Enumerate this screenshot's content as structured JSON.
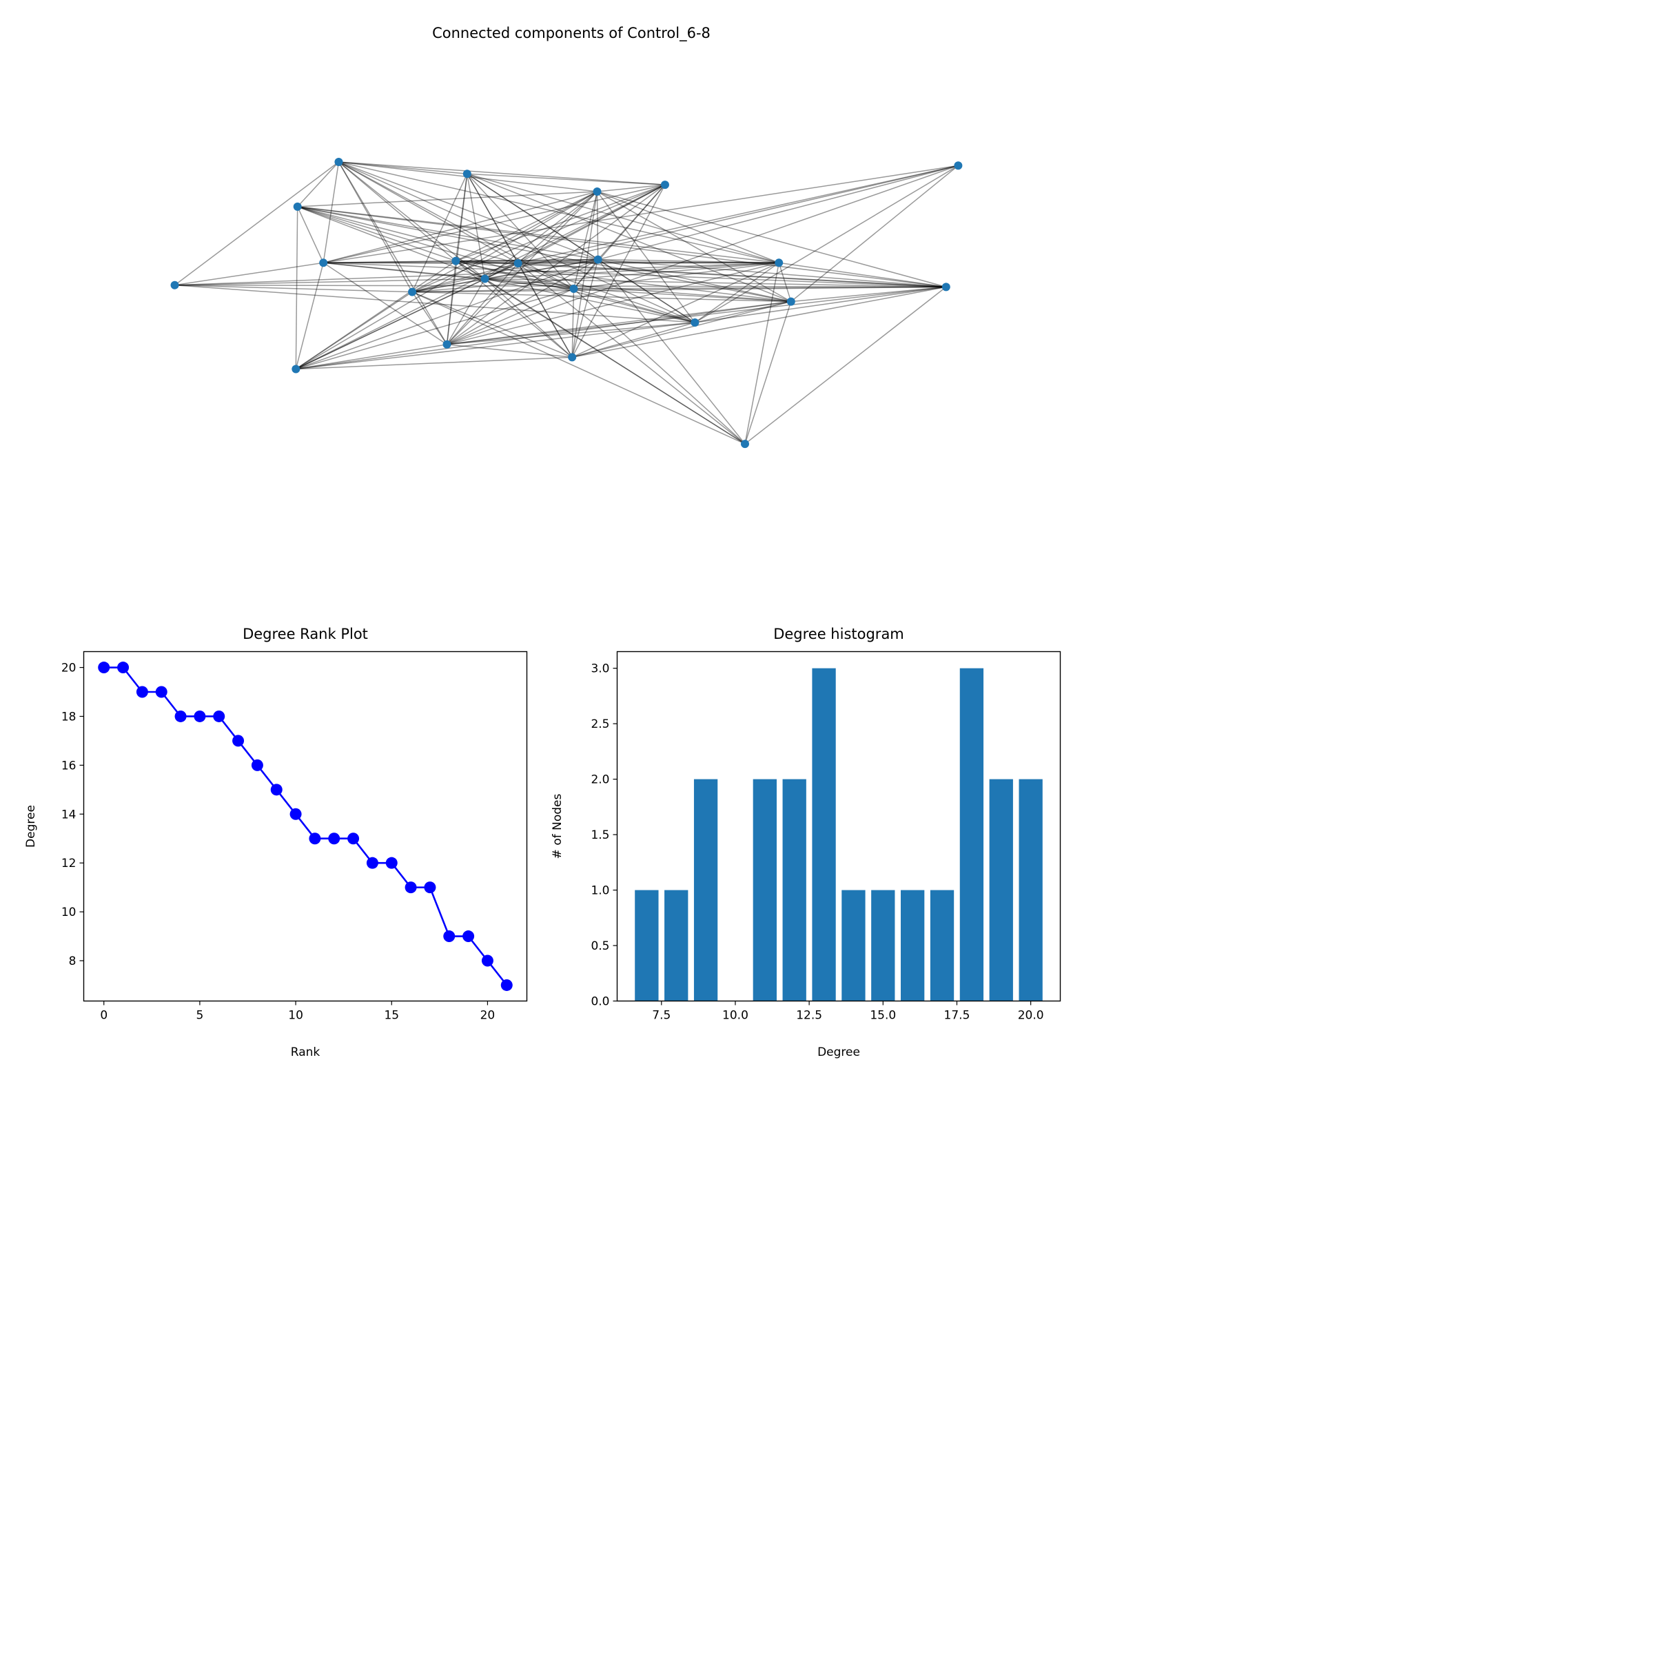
{
  "chart_data": [
    {
      "type": "network",
      "title": "Connected components of Control_6-8",
      "node_color": "#1f77b4",
      "edge_color": "#000000",
      "nodes": [
        {
          "id": "n1",
          "x": 0.212,
          "y": 0.858
        },
        {
          "id": "n2",
          "x": 0.371,
          "y": 0.832
        },
        {
          "id": "n3",
          "x": 0.532,
          "y": 0.793
        },
        {
          "id": "n4",
          "x": 0.616,
          "y": 0.808
        },
        {
          "id": "n5",
          "x": 0.979,
          "y": 0.85
        },
        {
          "id": "n6",
          "x": 0.161,
          "y": 0.76
        },
        {
          "id": "n7",
          "x": 0.193,
          "y": 0.637
        },
        {
          "id": "n8",
          "x": 0.357,
          "y": 0.641
        },
        {
          "id": "n9",
          "x": 0.434,
          "y": 0.636
        },
        {
          "id": "n10",
          "x": 0.533,
          "y": 0.644
        },
        {
          "id": "n11",
          "x": 0.757,
          "y": 0.637
        },
        {
          "id": "n12",
          "x": 0.009,
          "y": 0.588
        },
        {
          "id": "n13",
          "x": 0.393,
          "y": 0.602
        },
        {
          "id": "n14",
          "x": 0.303,
          "y": 0.573
        },
        {
          "id": "n15",
          "x": 0.503,
          "y": 0.58
        },
        {
          "id": "n16",
          "x": 0.964,
          "y": 0.584
        },
        {
          "id": "n17",
          "x": 0.772,
          "y": 0.552
        },
        {
          "id": "n18",
          "x": 0.653,
          "y": 0.506
        },
        {
          "id": "n19",
          "x": 0.346,
          "y": 0.458
        },
        {
          "id": "n20",
          "x": 0.501,
          "y": 0.43
        },
        {
          "id": "n21",
          "x": 0.159,
          "y": 0.404
        },
        {
          "id": "n22",
          "x": 0.715,
          "y": 0.24
        }
      ],
      "edges": [
        [
          "n1",
          "n6"
        ],
        [
          "n1",
          "n7"
        ],
        [
          "n1",
          "n8"
        ],
        [
          "n1",
          "n9"
        ],
        [
          "n1",
          "n10"
        ],
        [
          "n1",
          "n11"
        ],
        [
          "n1",
          "n13"
        ],
        [
          "n1",
          "n14"
        ],
        [
          "n1",
          "n15"
        ],
        [
          "n1",
          "n18"
        ],
        [
          "n1",
          "n19"
        ],
        [
          "n1",
          "n12"
        ],
        [
          "n1",
          "n4"
        ],
        [
          "n1",
          "n2"
        ],
        [
          "n1",
          "n3"
        ],
        [
          "n2",
          "n8"
        ],
        [
          "n2",
          "n9"
        ],
        [
          "n2",
          "n10"
        ],
        [
          "n2",
          "n13"
        ],
        [
          "n2",
          "n14"
        ],
        [
          "n2",
          "n15"
        ],
        [
          "n2",
          "n18"
        ],
        [
          "n2",
          "n19"
        ],
        [
          "n2",
          "n11"
        ],
        [
          "n2",
          "n17"
        ],
        [
          "n2",
          "n4"
        ],
        [
          "n2",
          "n20"
        ],
        [
          "n3",
          "n7"
        ],
        [
          "n3",
          "n8"
        ],
        [
          "n3",
          "n9"
        ],
        [
          "n3",
          "n10"
        ],
        [
          "n3",
          "n13"
        ],
        [
          "n3",
          "n14"
        ],
        [
          "n3",
          "n15"
        ],
        [
          "n3",
          "n19"
        ],
        [
          "n3",
          "n20"
        ],
        [
          "n3",
          "n21"
        ],
        [
          "n3",
          "n17"
        ],
        [
          "n3",
          "n16"
        ],
        [
          "n3",
          "n6"
        ],
        [
          "n3",
          "n4"
        ],
        [
          "n3",
          "n18"
        ],
        [
          "n3",
          "n11"
        ],
        [
          "n4",
          "n7"
        ],
        [
          "n4",
          "n9"
        ],
        [
          "n4",
          "n13"
        ],
        [
          "n4",
          "n14"
        ],
        [
          "n4",
          "n15"
        ],
        [
          "n4",
          "n19"
        ],
        [
          "n4",
          "n21"
        ],
        [
          "n4",
          "n10"
        ],
        [
          "n4",
          "n8"
        ],
        [
          "n4",
          "n20"
        ],
        [
          "n5",
          "n7"
        ],
        [
          "n5",
          "n9"
        ],
        [
          "n5",
          "n14"
        ],
        [
          "n5",
          "n17"
        ],
        [
          "n5",
          "n18"
        ],
        [
          "n5",
          "n19"
        ],
        [
          "n5",
          "n10"
        ],
        [
          "n6",
          "n7"
        ],
        [
          "n6",
          "n8"
        ],
        [
          "n6",
          "n9"
        ],
        [
          "n6",
          "n10"
        ],
        [
          "n6",
          "n11"
        ],
        [
          "n6",
          "n13"
        ],
        [
          "n6",
          "n16"
        ],
        [
          "n6",
          "n17"
        ],
        [
          "n6",
          "n21"
        ],
        [
          "n6",
          "n15"
        ],
        [
          "n7",
          "n8"
        ],
        [
          "n7",
          "n9"
        ],
        [
          "n7",
          "n10"
        ],
        [
          "n7",
          "n11"
        ],
        [
          "n7",
          "n13"
        ],
        [
          "n7",
          "n16"
        ],
        [
          "n7",
          "n15"
        ],
        [
          "n7",
          "n19"
        ],
        [
          "n7",
          "n21"
        ],
        [
          "n8",
          "n9"
        ],
        [
          "n8",
          "n10"
        ],
        [
          "n8",
          "n11"
        ],
        [
          "n8",
          "n13"
        ],
        [
          "n8",
          "n15"
        ],
        [
          "n8",
          "n16"
        ],
        [
          "n8",
          "n17"
        ],
        [
          "n8",
          "n18"
        ],
        [
          "n8",
          "n19"
        ],
        [
          "n8",
          "n20"
        ],
        [
          "n8",
          "n21"
        ],
        [
          "n9",
          "n10"
        ],
        [
          "n9",
          "n11"
        ],
        [
          "n9",
          "n13"
        ],
        [
          "n9",
          "n15"
        ],
        [
          "n9",
          "n16"
        ],
        [
          "n9",
          "n18"
        ],
        [
          "n9",
          "n19"
        ],
        [
          "n9",
          "n20"
        ],
        [
          "n9",
          "n21"
        ],
        [
          "n9",
          "n14"
        ],
        [
          "n10",
          "n11"
        ],
        [
          "n10",
          "n14"
        ],
        [
          "n10",
          "n15"
        ],
        [
          "n10",
          "n16"
        ],
        [
          "n10",
          "n17"
        ],
        [
          "n10",
          "n18"
        ],
        [
          "n10",
          "n19"
        ],
        [
          "n10",
          "n20"
        ],
        [
          "n10",
          "n21"
        ],
        [
          "n10",
          "n13"
        ],
        [
          "n11",
          "n12"
        ],
        [
          "n11",
          "n14"
        ],
        [
          "n11",
          "n15"
        ],
        [
          "n11",
          "n16"
        ],
        [
          "n11",
          "n17"
        ],
        [
          "n11",
          "n18"
        ],
        [
          "n11",
          "n19"
        ],
        [
          "n11",
          "n20"
        ],
        [
          "n11",
          "n22"
        ],
        [
          "n11",
          "n13"
        ],
        [
          "n12",
          "n7"
        ],
        [
          "n12",
          "n13"
        ],
        [
          "n12",
          "n16"
        ],
        [
          "n12",
          "n18"
        ],
        [
          "n12",
          "n14"
        ],
        [
          "n13",
          "n14"
        ],
        [
          "n13",
          "n15"
        ],
        [
          "n13",
          "n16"
        ],
        [
          "n13",
          "n17"
        ],
        [
          "n13",
          "n19"
        ],
        [
          "n13",
          "n20"
        ],
        [
          "n13",
          "n21"
        ],
        [
          "n13",
          "n18"
        ],
        [
          "n14",
          "n15"
        ],
        [
          "n14",
          "n16"
        ],
        [
          "n14",
          "n17"
        ],
        [
          "n14",
          "n19"
        ],
        [
          "n14",
          "n20"
        ],
        [
          "n14",
          "n21"
        ],
        [
          "n15",
          "n16"
        ],
        [
          "n15",
          "n17"
        ],
        [
          "n15",
          "n18"
        ],
        [
          "n15",
          "n19"
        ],
        [
          "n15",
          "n20"
        ],
        [
          "n15",
          "n21"
        ],
        [
          "n15",
          "n22"
        ],
        [
          "n16",
          "n17"
        ],
        [
          "n16",
          "n18"
        ],
        [
          "n16",
          "n19"
        ],
        [
          "n16",
          "n20"
        ],
        [
          "n16",
          "n22"
        ],
        [
          "n17",
          "n18"
        ],
        [
          "n17",
          "n19"
        ],
        [
          "n17",
          "n20"
        ],
        [
          "n17",
          "n21"
        ],
        [
          "n17",
          "n22"
        ],
        [
          "n18",
          "n19"
        ],
        [
          "n18",
          "n20"
        ],
        [
          "n18",
          "n21"
        ],
        [
          "n19",
          "n20"
        ],
        [
          "n19",
          "n21"
        ],
        [
          "n20",
          "n21"
        ],
        [
          "n22",
          "n8"
        ],
        [
          "n22",
          "n9"
        ],
        [
          "n22",
          "n10"
        ],
        [
          "n22",
          "n13"
        ],
        [
          "n22",
          "n14"
        ]
      ]
    },
    {
      "type": "line",
      "title": "Degree Rank Plot",
      "xlabel": "Rank",
      "ylabel": "Degree",
      "color": "#0000ff",
      "x": [
        0,
        1,
        2,
        3,
        4,
        5,
        6,
        7,
        8,
        9,
        10,
        11,
        12,
        13,
        14,
        15,
        16,
        17,
        18,
        19,
        20,
        21
      ],
      "y": [
        20,
        20,
        19,
        19,
        18,
        18,
        18,
        17,
        16,
        15,
        14,
        13,
        13,
        13,
        12,
        12,
        11,
        11,
        9,
        9,
        8,
        7
      ],
      "xlim": [
        -1.05,
        22.05
      ],
      "ylim": [
        6.35,
        20.65
      ],
      "xticks": [
        0,
        5,
        10,
        15,
        20
      ],
      "yticks": [
        8,
        10,
        12,
        14,
        16,
        18,
        20
      ],
      "xtick_labels": [
        "0",
        "5",
        "10",
        "15",
        "20"
      ],
      "ytick_labels": [
        "8",
        "10",
        "12",
        "14",
        "16",
        "18",
        "20"
      ]
    },
    {
      "type": "bar",
      "title": "Degree histogram",
      "xlabel": "Degree",
      "ylabel": "# of Nodes",
      "color": "#1f77b4",
      "categories": [
        7,
        8,
        9,
        11,
        12,
        13,
        14,
        15,
        16,
        17,
        18,
        19,
        20
      ],
      "values": [
        1,
        1,
        2,
        2,
        2,
        3,
        1,
        1,
        1,
        1,
        3,
        2,
        2
      ],
      "bar_width": 0.8,
      "xlim": [
        6.0,
        21.0
      ],
      "ylim": [
        0,
        3.15
      ],
      "xticks": [
        7.5,
        10.0,
        12.5,
        15.0,
        17.5,
        20.0
      ],
      "yticks": [
        0.0,
        0.5,
        1.0,
        1.5,
        2.0,
        2.5,
        3.0
      ],
      "xtick_labels": [
        "7.5",
        "10.0",
        "12.5",
        "15.0",
        "17.5",
        "20.0"
      ],
      "ytick_labels": [
        "0.0",
        "0.5",
        "1.0",
        "1.5",
        "2.0",
        "2.5",
        "3.0"
      ]
    }
  ]
}
